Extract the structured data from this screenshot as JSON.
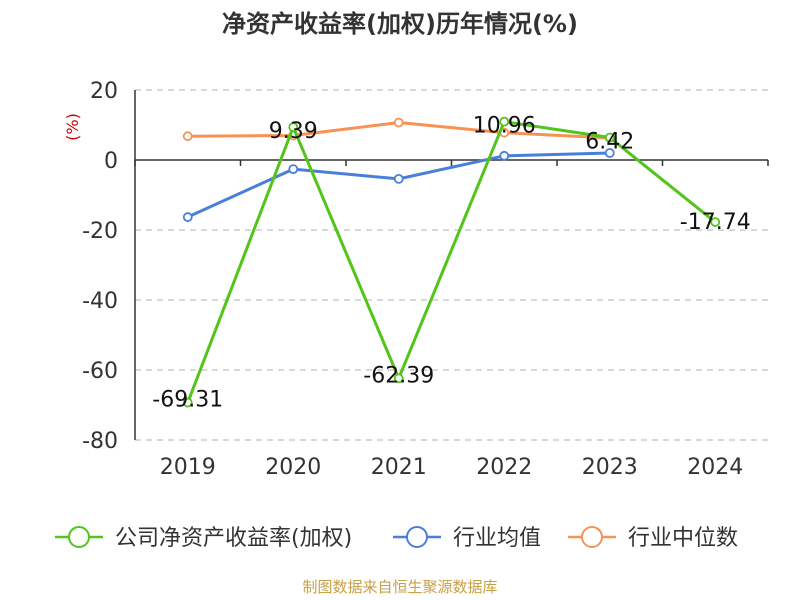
{
  "chart_data": {
    "type": "line",
    "title": "净资产收益率(加权)历年情况(%)",
    "ylabel": "(%)",
    "categories": [
      "2019",
      "2020",
      "2021",
      "2022",
      "2023",
      "2024"
    ],
    "ylim": [
      -80,
      20
    ],
    "yticks": [
      20,
      0,
      -20,
      -40,
      -60,
      -80
    ],
    "grid": true,
    "legend_position": "bottom",
    "series": [
      {
        "name": "公司净资产收益率(加权)",
        "color": "#52c41a",
        "values": [
          -69.31,
          9.39,
          -62.39,
          10.96,
          6.42,
          -17.74
        ],
        "labels": [
          "-69.31",
          "9.39",
          "-62.39",
          "10.96",
          "6.42",
          "-17.74"
        ]
      },
      {
        "name": "行业均值",
        "color": "#4a7fd9",
        "values": [
          -16.3,
          -2.6,
          -5.4,
          1.2,
          2.0,
          null
        ]
      },
      {
        "name": "行业中位数",
        "color": "#f79257",
        "values": [
          6.8,
          7.0,
          10.7,
          7.8,
          6.3,
          null
        ]
      }
    ],
    "source": "制图数据来自恒生聚源数据库",
    "axis_color": "#333333",
    "grid_color": "#cccccc",
    "unit_color": "#cc0000",
    "source_color": "#c8a046"
  }
}
